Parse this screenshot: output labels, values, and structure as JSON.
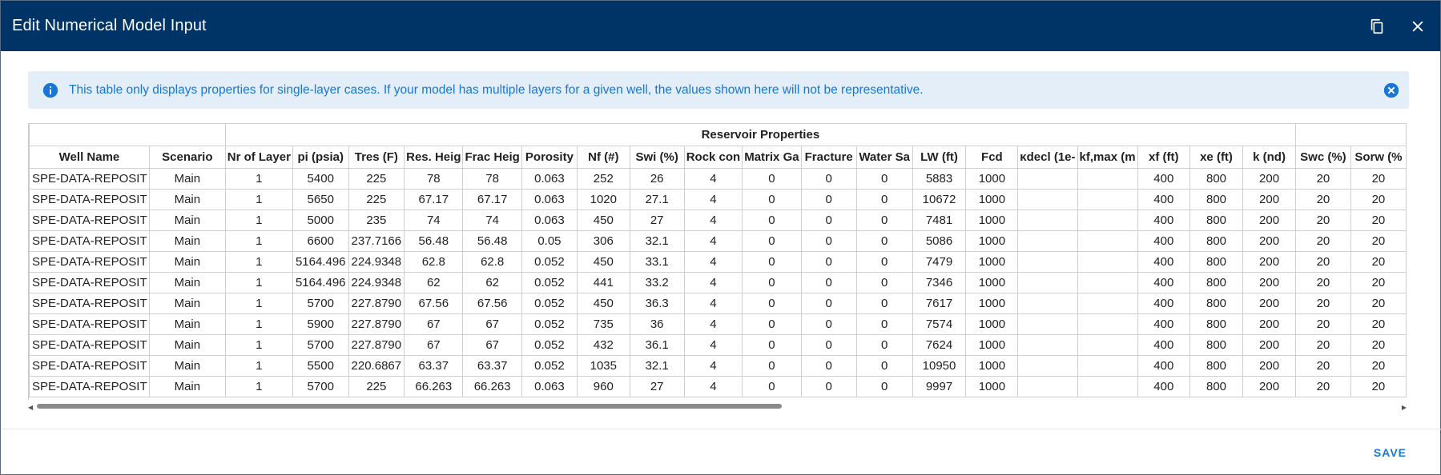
{
  "dialog": {
    "title": "Edit Numerical Model Input",
    "save_label": "SAVE"
  },
  "banner": {
    "message": "This table only displays properties for single-layer cases. If your model has multiple layers for a given well, the values shown here will not be representative."
  },
  "table": {
    "group_header": "Reservoir Properties",
    "columns": [
      "Well Name",
      "Scenario",
      "Nr of Layer",
      "pi (psia)",
      "Tres (F)",
      "Res. Heig",
      "Frac Heig",
      "Porosity",
      "Nf (#)",
      "Swi (%)",
      "Rock con",
      "Matrix Ga",
      "Fracture",
      "Water Sa",
      "LW (ft)",
      "Fcd",
      "κdecl (1e-",
      "kf,max (m",
      "xf (ft)",
      "xe (ft)",
      "k (nd)",
      "Swc (%)",
      "Sorw (%"
    ],
    "rows": [
      [
        "SPE-DATA-REPOSIT",
        "Main",
        "1",
        "5400",
        "225",
        "78",
        "78",
        "0.063",
        "252",
        "26",
        "4",
        "0",
        "0",
        "0",
        "5883",
        "1000",
        "",
        "",
        "400",
        "800",
        "200",
        "20",
        "20"
      ],
      [
        "SPE-DATA-REPOSIT",
        "Main",
        "1",
        "5650",
        "225",
        "67.17",
        "67.17",
        "0.063",
        "1020",
        "27.1",
        "4",
        "0",
        "0",
        "0",
        "10672",
        "1000",
        "",
        "",
        "400",
        "800",
        "200",
        "20",
        "20"
      ],
      [
        "SPE-DATA-REPOSIT",
        "Main",
        "1",
        "5000",
        "235",
        "74",
        "74",
        "0.063",
        "450",
        "27",
        "4",
        "0",
        "0",
        "0",
        "7481",
        "1000",
        "",
        "",
        "400",
        "800",
        "200",
        "20",
        "20"
      ],
      [
        "SPE-DATA-REPOSIT",
        "Main",
        "1",
        "6600",
        "237.7166",
        "56.48",
        "56.48",
        "0.05",
        "306",
        "32.1",
        "4",
        "0",
        "0",
        "0",
        "5086",
        "1000",
        "",
        "",
        "400",
        "800",
        "200",
        "20",
        "20"
      ],
      [
        "SPE-DATA-REPOSIT",
        "Main",
        "1",
        "5164.496",
        "224.9348",
        "62.8",
        "62.8",
        "0.052",
        "450",
        "33.1",
        "4",
        "0",
        "0",
        "0",
        "7479",
        "1000",
        "",
        "",
        "400",
        "800",
        "200",
        "20",
        "20"
      ],
      [
        "SPE-DATA-REPOSIT",
        "Main",
        "1",
        "5164.496",
        "224.9348",
        "62",
        "62",
        "0.052",
        "441",
        "33.2",
        "4",
        "0",
        "0",
        "0",
        "7346",
        "1000",
        "",
        "",
        "400",
        "800",
        "200",
        "20",
        "20"
      ],
      [
        "SPE-DATA-REPOSIT",
        "Main",
        "1",
        "5700",
        "227.8790",
        "67.56",
        "67.56",
        "0.052",
        "450",
        "36.3",
        "4",
        "0",
        "0",
        "0",
        "7617",
        "1000",
        "",
        "",
        "400",
        "800",
        "200",
        "20",
        "20"
      ],
      [
        "SPE-DATA-REPOSIT",
        "Main",
        "1",
        "5900",
        "227.8790",
        "67",
        "67",
        "0.052",
        "735",
        "36",
        "4",
        "0",
        "0",
        "0",
        "7574",
        "1000",
        "",
        "",
        "400",
        "800",
        "200",
        "20",
        "20"
      ],
      [
        "SPE-DATA-REPOSIT",
        "Main",
        "1",
        "5700",
        "227.8790",
        "67",
        "67",
        "0.052",
        "432",
        "36.1",
        "4",
        "0",
        "0",
        "0",
        "7624",
        "1000",
        "",
        "",
        "400",
        "800",
        "200",
        "20",
        "20"
      ],
      [
        "SPE-DATA-REPOSIT",
        "Main",
        "1",
        "5500",
        "220.6867",
        "63.37",
        "63.37",
        "0.052",
        "1035",
        "32.1",
        "4",
        "0",
        "0",
        "0",
        "10950",
        "1000",
        "",
        "",
        "400",
        "800",
        "200",
        "20",
        "20"
      ],
      [
        "SPE-DATA-REPOSIT",
        "Main",
        "1",
        "5700",
        "225",
        "66.263",
        "66.263",
        "0.063",
        "960",
        "27",
        "4",
        "0",
        "0",
        "0",
        "9997",
        "1000",
        "",
        "",
        "400",
        "800",
        "200",
        "20",
        "20"
      ]
    ]
  },
  "icons": {
    "copy": "copy-icon",
    "close": "close-icon",
    "info": "info-icon",
    "banner_close": "close-circle-icon"
  },
  "colors": {
    "titlebar": "#003366",
    "accent": "#1976d2",
    "banner_bg": "#e3eef8"
  }
}
